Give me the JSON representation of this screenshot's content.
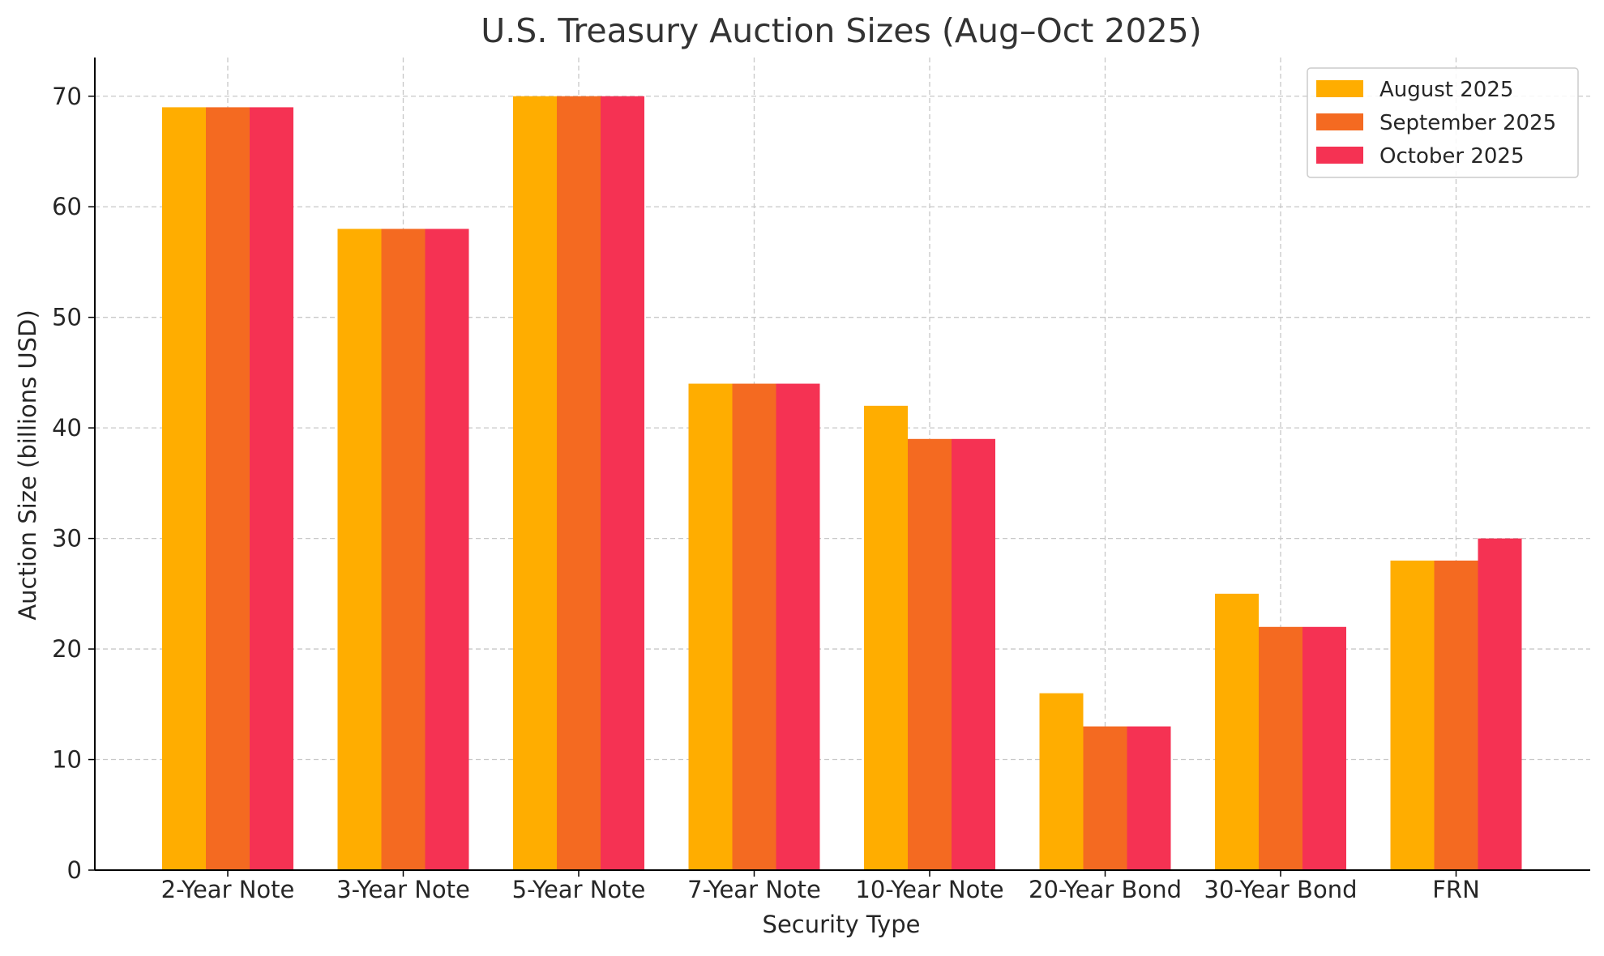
{
  "chart_data": {
    "type": "bar",
    "title": "U.S. Treasury Auction Sizes (Aug–Oct 2025)",
    "xlabel": "Security Type",
    "ylabel": "Auction Size (billions USD)",
    "categories": [
      "2-Year Note",
      "3-Year Note",
      "5-Year Note",
      "7-Year Note",
      "10-Year Note",
      "20-Year Bond",
      "30-Year Bond",
      "FRN"
    ],
    "series": [
      {
        "name": "August 2025",
        "color": "#FFAD00",
        "values": [
          69,
          58,
          70,
          44,
          42,
          16,
          25,
          28
        ]
      },
      {
        "name": "September 2025",
        "color": "#F46A21",
        "values": [
          69,
          58,
          70,
          44,
          39,
          13,
          22,
          28
        ]
      },
      {
        "name": "October 2025",
        "color": "#F53253",
        "values": [
          69,
          58,
          70,
          44,
          39,
          13,
          22,
          30
        ]
      }
    ],
    "ylim": [
      0,
      73.5
    ],
    "yticks": [
      0,
      10,
      20,
      30,
      40,
      50,
      60,
      70
    ],
    "grid": true,
    "legend_position": "top-right"
  }
}
